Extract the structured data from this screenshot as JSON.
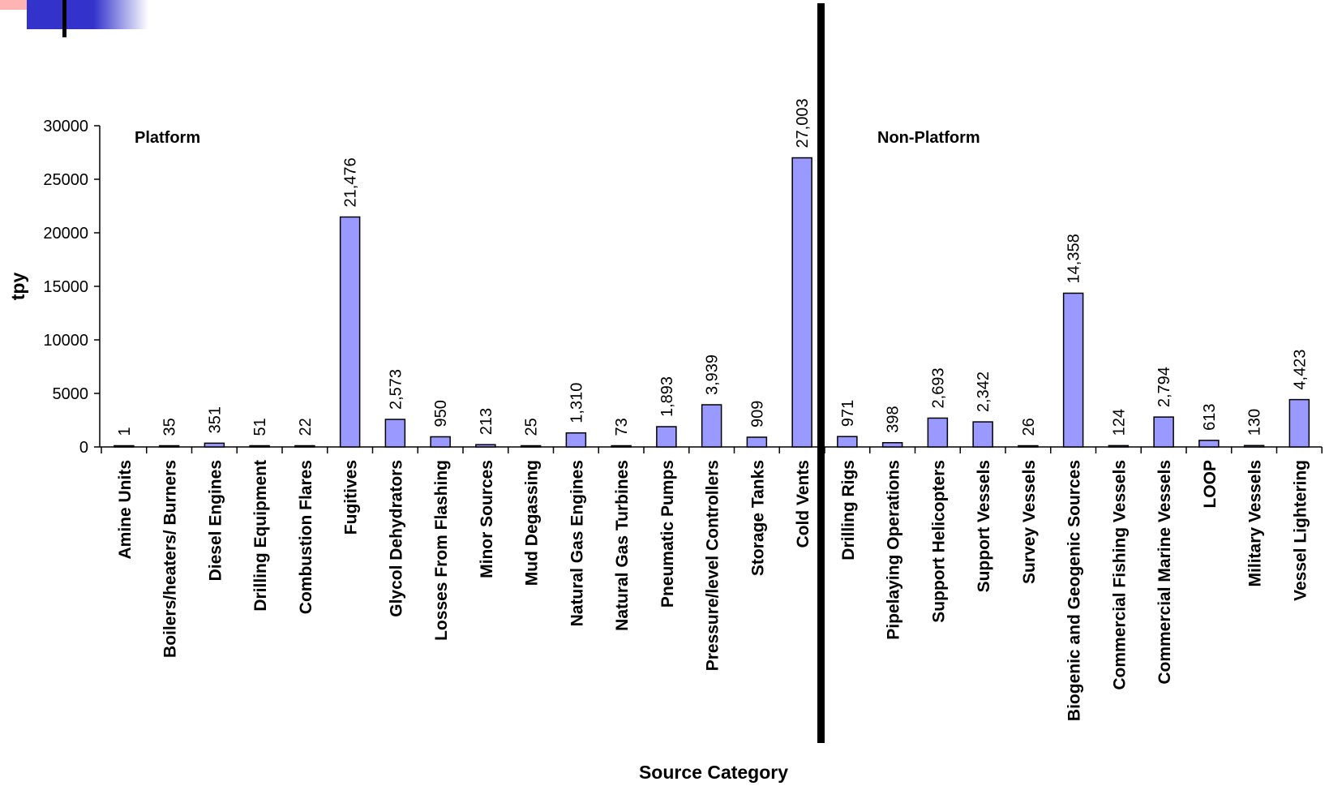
{
  "colors": {
    "bar_fill": "#9999ff",
    "bar_stroke": "#000000",
    "divider": "#000000",
    "decor_blue": "#3333cc",
    "decor_pink": "#ff9999"
  },
  "chart_data": {
    "type": "bar",
    "xlabel": "Source Category",
    "ylabel": "tpy",
    "ylim": [
      0,
      30000
    ],
    "yticks": [
      0,
      5000,
      10000,
      15000,
      20000,
      25000,
      30000
    ],
    "grid": false,
    "legend": "none",
    "regions": [
      {
        "label": "Platform",
        "start_index": 0,
        "end_index": 15
      },
      {
        "label": "Non-Platform",
        "start_index": 16,
        "end_index": 27
      }
    ],
    "categories": [
      "Amine Units",
      "Boilers/heaters/ Burners",
      "Diesel Engines",
      "Drilling Equipment",
      "Combustion Flares",
      "Fugitives",
      "Glycol Dehydrators",
      "Losses From Flashing",
      "Minor Sources",
      "Mud Degassing",
      "Natural Gas Engines",
      "Natural Gas Turbines",
      "Pneumatic Pumps",
      "Pressure/level Controllers",
      "Storage Tanks",
      "Cold Vents",
      "Drilling Rigs",
      "Pipelaying Operations",
      "Support Helicopters",
      "Support Vessels",
      "Survey Vessels",
      "Biogenic and Geogenic Sources",
      "Commercial Fishing Vessels",
      "Commercial Marine Vessels",
      "LOOP",
      "Military Vessels",
      "Vessel Lightering"
    ],
    "values": [
      1,
      35,
      351,
      51,
      22,
      21476,
      2573,
      950,
      213,
      25,
      1310,
      73,
      1893,
      3939,
      909,
      27003,
      971,
      398,
      2693,
      2342,
      26,
      14358,
      124,
      2794,
      613,
      130,
      4423
    ],
    "data_labels": [
      "1",
      "35",
      "351",
      "51",
      "22",
      "21,476",
      "2,573",
      "950",
      "213",
      "25",
      "1,310",
      "73",
      "1,893",
      "3,939",
      "909",
      "27,003",
      "971",
      "398",
      "2,693",
      "2,342",
      "26",
      "14,358",
      "124",
      "2,794",
      "613",
      "130",
      "4,423"
    ]
  }
}
